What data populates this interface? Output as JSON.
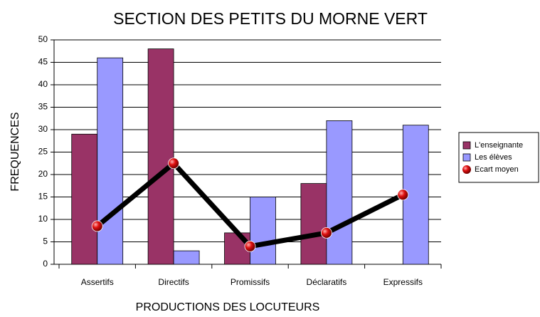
{
  "chart_data": {
    "type": "bar",
    "title": "SECTION DES PETITS DU MORNE VERT",
    "x_label": "PRODUCTIONS DES LOCUTEURS",
    "y_label": "FREQUENCES",
    "categories": [
      "Assertifs",
      "Directifs",
      "Promissifs",
      "Déclaratifs",
      "Expressifs"
    ],
    "series": [
      {
        "name": "L'enseignante",
        "color": "#993366",
        "values": [
          29,
          48,
          7,
          18,
          0
        ]
      },
      {
        "name": "Les élèves",
        "color": "#9999ff",
        "values": [
          46,
          3,
          15,
          32,
          31
        ]
      },
      {
        "name": "Ecart moyen",
        "type": "line",
        "color": "#000000",
        "marker_color": "#e01010",
        "values": [
          8.5,
          22.5,
          4,
          7,
          15.5
        ]
      }
    ],
    "ylim": [
      0,
      50
    ],
    "yticks": [
      0,
      5,
      10,
      15,
      20,
      25,
      30,
      35,
      40,
      45,
      50
    ],
    "grid": true,
    "legend": "right"
  }
}
